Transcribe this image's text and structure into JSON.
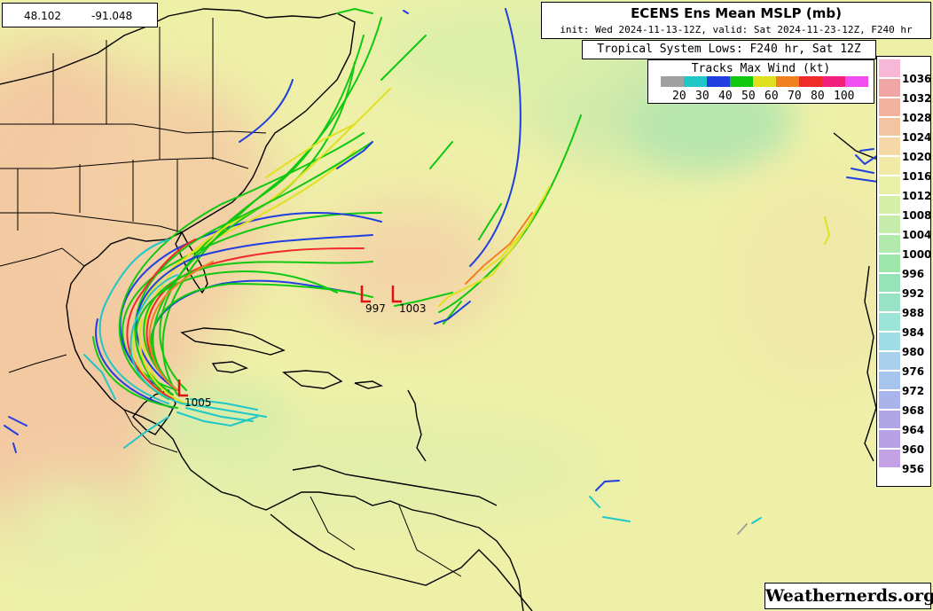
{
  "coords": {
    "lat": "48.102",
    "lon": "-91.048"
  },
  "title": {
    "main": "ECENS Ens Mean MSLP (mb)",
    "sub": "init: Wed 2024-11-13-12Z, valid: Sat 2024-11-23-12Z, F240 hr"
  },
  "lows_header": "Tropical System Lows: F240 hr, Sat 12Z",
  "legend": {
    "title": "Tracks Max Wind (kt)",
    "swatches": [
      "#a0a0a0",
      "#1fc7c7",
      "#1f3fe0",
      "#10c810",
      "#e0e020",
      "#f08020",
      "#f02a2a",
      "#f0207c",
      "#f04ef0"
    ],
    "labels": [
      "20",
      "30",
      "40",
      "50",
      "60",
      "70",
      "80",
      "100"
    ]
  },
  "colorbar": {
    "levels": [
      "1036",
      "1032",
      "1028",
      "1024",
      "1020",
      "1016",
      "1012",
      "1008",
      "1004",
      "1000",
      "996",
      "992",
      "988",
      "984",
      "980",
      "976",
      "972",
      "968",
      "964",
      "960",
      "956"
    ],
    "colors": [
      "#f7b8d8",
      "#f1a6a6",
      "#f2b2a0",
      "#f3c4a2",
      "#f4d8a8",
      "#f1eaa6",
      "#e8f0a8",
      "#d6efa8",
      "#c6ecac",
      "#b2e9ac",
      "#9fe6ac",
      "#96e3b8",
      "#98e3c6",
      "#9ce3d8",
      "#a0dde6",
      "#a8d2ec",
      "#a6c4ec",
      "#a8b4ea",
      "#b0a6e6",
      "#b8a0e4",
      "#c4a0e4"
    ]
  },
  "lows": [
    {
      "label": "997"
    },
    {
      "label": "1003"
    },
    {
      "label": "1005"
    }
  ],
  "watermark": "Weathernerds.org"
}
